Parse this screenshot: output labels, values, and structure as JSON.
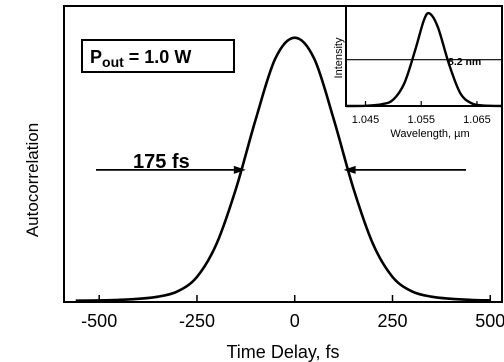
{
  "chart_data": [
    {
      "type": "line",
      "title": "",
      "xlabel": "Time Delay,  fs",
      "ylabel": "Autocorrelation",
      "xlim": [
        -590,
        530
      ],
      "ylim": [
        0,
        1.12
      ],
      "x_ticks": [
        -500,
        -250,
        0,
        250,
        500
      ],
      "x_tick_labels": [
        "-500",
        "-250",
        "0",
        "250",
        "500"
      ],
      "grid": false,
      "series": [
        {
          "x": [
            -560,
            -500,
            -450,
            -400,
            -350,
            -300,
            -250,
            -200,
            -150,
            -100,
            -50,
            0,
            50,
            100,
            150,
            200,
            250,
            300,
            350,
            400,
            450,
            500
          ],
          "y": [
            0.005,
            0.006,
            0.008,
            0.012,
            0.02,
            0.04,
            0.095,
            0.22,
            0.43,
            0.69,
            0.92,
            1.0,
            0.92,
            0.69,
            0.43,
            0.22,
            0.095,
            0.04,
            0.02,
            0.012,
            0.008,
            0.006
          ]
        }
      ],
      "annotations": {
        "fwhm_label": "175 fs",
        "fwhm_left": -125,
        "fwhm_right": 125,
        "fwhm_level": 0.5
      },
      "legend_box": {
        "p_letter": "P",
        "p_subscript": "out",
        "value_text": " = 1.0 W"
      }
    },
    {
      "type": "line",
      "title": "",
      "xlabel": "Wavelength,  µm",
      "ylabel": "Intensity",
      "xlim": [
        1.0415,
        1.0695
      ],
      "ylim": [
        0,
        1.08
      ],
      "x_ticks": [
        1.045,
        1.055,
        1.065
      ],
      "x_tick_labels": [
        "1.045",
        "1.055",
        "1.065"
      ],
      "grid": false,
      "series": [
        {
          "x": [
            1.0415,
            1.045,
            1.048,
            1.05,
            1.052,
            1.054,
            1.0555,
            1.0565,
            1.058,
            1.06,
            1.062,
            1.064,
            1.066,
            1.0695
          ],
          "y": [
            0.0,
            0.002,
            0.02,
            0.07,
            0.25,
            0.62,
            0.93,
            1.0,
            0.85,
            0.45,
            0.14,
            0.03,
            0.006,
            0.0
          ]
        }
      ],
      "annotations": {
        "fwhm_label": "8.2 nm",
        "fwhm_level": 0.5
      }
    }
  ]
}
